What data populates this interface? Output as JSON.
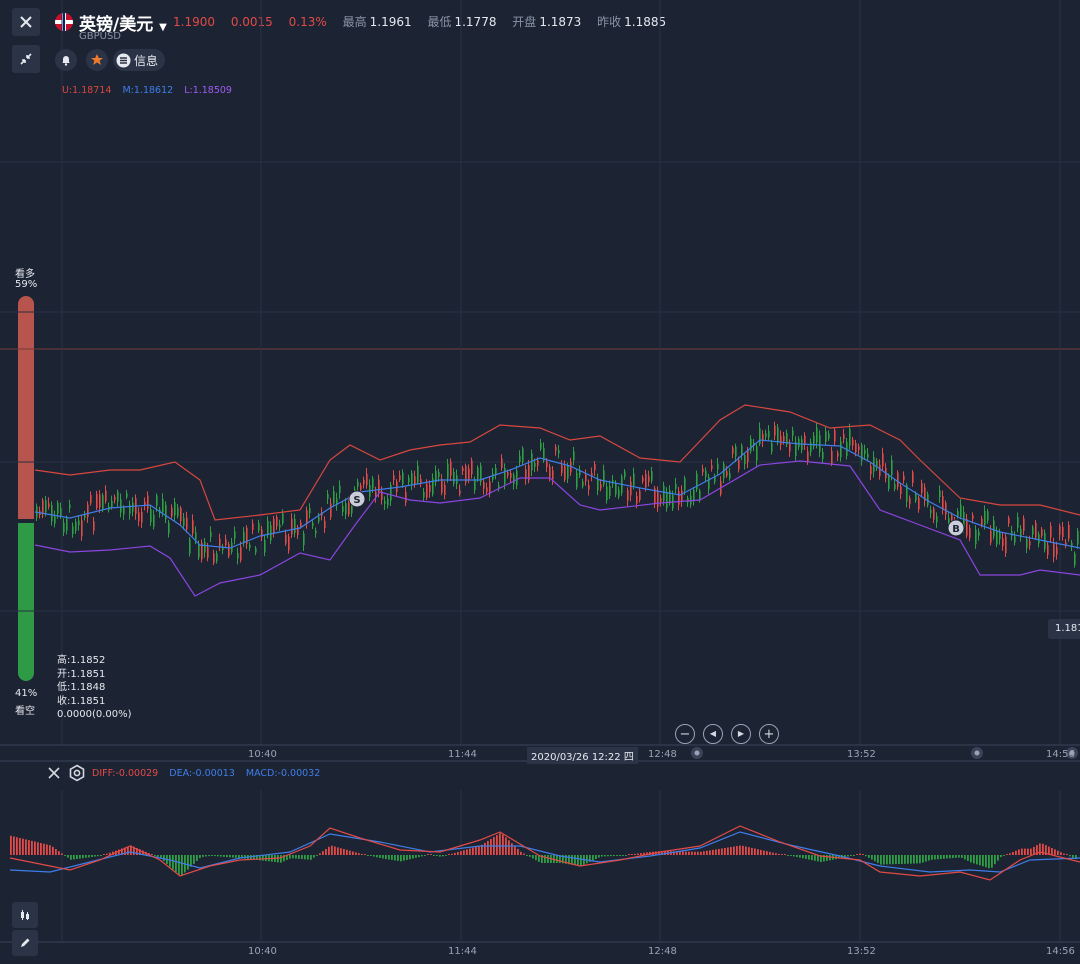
{
  "header": {
    "symbol_name": "英镑/美元",
    "symbol_code": "GBPUSD",
    "price": "1.1900",
    "change": "0.0015",
    "change_pct": "0.13%",
    "high_label": "最高",
    "high": "1.1961",
    "low_label": "最低",
    "low": "1.1778",
    "open_label": "开盘",
    "open": "1.1873",
    "prev_label": "昨收",
    "prev": "1.1885",
    "info_label": "信息"
  },
  "boll": {
    "upper": "U:1.18714",
    "middle": "M:1.18612",
    "lower": "L:1.18509"
  },
  "sentiment": {
    "bull_label": "看多",
    "bull_pct": "59%",
    "bear_pct": "41%",
    "bear_label": "看空",
    "bull_fraction": 0.59
  },
  "ohlc": {
    "high": "高:1.1852",
    "open": "开:1.1851",
    "low": "低:1.1848",
    "close": "收:1.1851",
    "change": "0.0000(0.00%)"
  },
  "price_tag": "1.181",
  "time_axis": [
    "10:40",
    "11:44",
    "12:48",
    "13:52",
    "14:56"
  ],
  "crosshair_time": "2020/03/26 12:22 四",
  "macd": {
    "diff": "DIFF:-0.00029",
    "dea": "DEA:-0.00013",
    "macd": "MACD:-0.00032"
  },
  "markers": {
    "sell": "S",
    "buy": "B"
  },
  "colors": {
    "up": "#e24b47",
    "down": "#2ea043",
    "upper": "#d9473f",
    "middle": "#3f7ee8",
    "lower": "#8b45e0",
    "background": "#1c2333"
  }
}
